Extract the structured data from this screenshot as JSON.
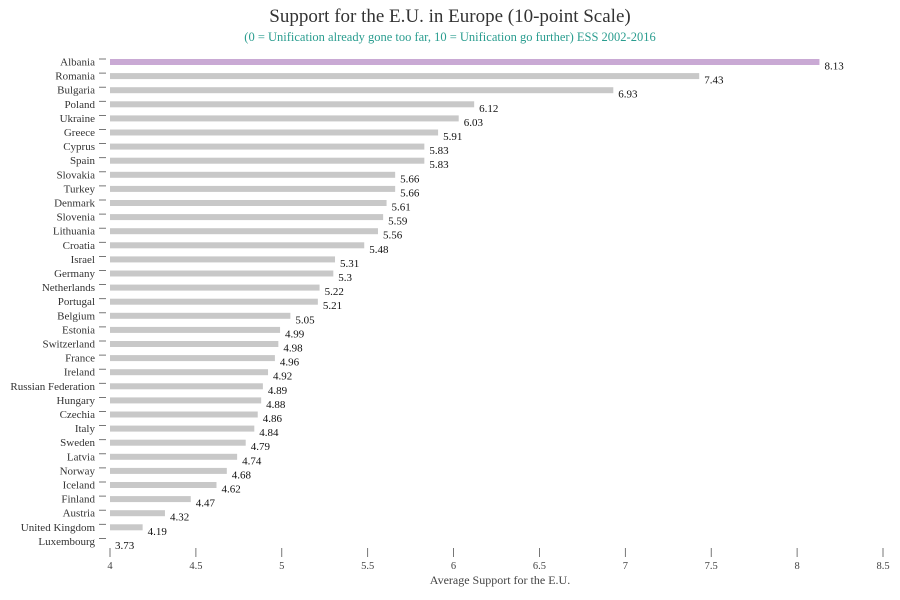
{
  "chart_data": {
    "type": "bar",
    "orientation": "horizontal",
    "title": "Support for the E.U. in Europe (10-point Scale)",
    "subtitle": "(0 = Unification already gone too far, 10 = Unification go further) ESS 2002-2016",
    "xlabel": "Average Support for the E.U.",
    "xlim": [
      4,
      8.5
    ],
    "xticks": [
      4,
      4.5,
      5,
      5.5,
      6,
      6.5,
      7,
      7.5,
      8,
      8.5
    ],
    "xtick_labels": [
      "4",
      "4.5",
      "5",
      "5.5",
      "6",
      "6.5",
      "7",
      "7.5",
      "8",
      "8.5"
    ],
    "grid": false,
    "colors": {
      "highlight": "#c9a9d4",
      "default": "#c8c8c8",
      "subtitle": "#2a9d8f"
    },
    "highlight_index": 0,
    "categories": [
      "Albania",
      "Romania",
      "Bulgaria",
      "Poland",
      "Ukraine",
      "Greece",
      "Cyprus",
      "Spain",
      "Slovakia",
      "Turkey",
      "Denmark",
      "Slovenia",
      "Lithuania",
      "Croatia",
      "Israel",
      "Germany",
      "Netherlands",
      "Portugal",
      "Belgium",
      "Estonia",
      "Switzerland",
      "France",
      "Ireland",
      "Russian Federation",
      "Hungary",
      "Czechia",
      "Italy",
      "Sweden",
      "Latvia",
      "Norway",
      "Iceland",
      "Finland",
      "Austria",
      "United Kingdom",
      "Luxembourg"
    ],
    "values": [
      8.13,
      7.43,
      6.93,
      6.12,
      6.03,
      5.91,
      5.83,
      5.83,
      5.66,
      5.66,
      5.61,
      5.59,
      5.56,
      5.48,
      5.31,
      5.3,
      5.22,
      5.21,
      5.05,
      4.99,
      4.98,
      4.96,
      4.92,
      4.89,
      4.88,
      4.86,
      4.84,
      4.79,
      4.74,
      4.68,
      4.62,
      4.47,
      4.32,
      4.19,
      3.73
    ],
    "value_labels": [
      "8.13",
      "7.43",
      "6.93",
      "6.12",
      "6.03",
      "5.91",
      "5.83",
      "5.83",
      "5.66",
      "5.66",
      "5.61",
      "5.59",
      "5.56",
      "5.48",
      "5.31",
      "5.3",
      "5.22",
      "5.21",
      "5.05",
      "4.99",
      "4.98",
      "4.96",
      "4.92",
      "4.89",
      "4.88",
      "4.86",
      "4.84",
      "4.79",
      "4.74",
      "4.68",
      "4.62",
      "4.47",
      "4.32",
      "4.19",
      "3.73"
    ]
  }
}
